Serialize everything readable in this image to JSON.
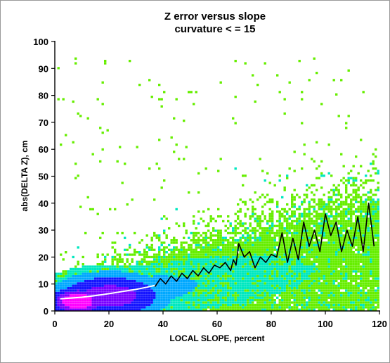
{
  "chart_data": {
    "type": "heatmap",
    "title": "Z error versus slope",
    "subtitle": "curvature < = 15",
    "xlabel": "LOCAL SLOPE, percent",
    "ylabel": "abs(DELTA Z), cm",
    "xlim": [
      0,
      120
    ],
    "ylim": [
      0,
      100
    ],
    "xticks": [
      "0",
      "20",
      "40",
      "60",
      "80",
      "100",
      "120"
    ],
    "yticks": [
      "0",
      "10",
      "20",
      "30",
      "40",
      "50",
      "60",
      "70",
      "80",
      "90",
      "100"
    ],
    "density_colors": [
      "#66ee00",
      "#00e8c0",
      "#00a8ff",
      "#1414ff",
      "#7a00ff",
      "#ff00ff"
    ],
    "density_description": "2D histogram density: low density green, rising through cyan, blue, purple to magenta at highest density",
    "density_core": {
      "x_center": 8,
      "y_center": 4
    },
    "trend_series": [
      {
        "name": "",
        "color": "#ffffff",
        "x": [
          2,
          6,
          10,
          14,
          18,
          22,
          26,
          30,
          34,
          37
        ],
        "y": [
          4.5,
          4.8,
          5.1,
          5.6,
          6.1,
          6.7,
          7.4,
          8.0,
          8.8,
          9.5
        ]
      },
      {
        "name": "",
        "color": "#000000",
        "x": [
          37,
          39,
          41,
          43,
          45,
          47,
          49,
          51,
          53,
          55,
          57,
          59,
          61,
          63,
          65,
          66,
          67,
          68,
          70,
          72,
          74,
          76,
          78,
          80,
          82,
          84,
          86,
          88,
          90,
          92,
          94,
          96,
          98,
          100,
          102,
          104,
          106,
          108,
          110,
          112,
          114,
          116,
          118
        ],
        "y": [
          9,
          12,
          10,
          13,
          11,
          14,
          12,
          15,
          13,
          16,
          14,
          17,
          16,
          18,
          15,
          19,
          17,
          25,
          20,
          22,
          16,
          20,
          18,
          21,
          20,
          29,
          18,
          27,
          19,
          33,
          24,
          30,
          22,
          36,
          28,
          33,
          22,
          30,
          24,
          35,
          22,
          40,
          24
        ]
      }
    ],
    "grid": false,
    "legend": "none"
  }
}
